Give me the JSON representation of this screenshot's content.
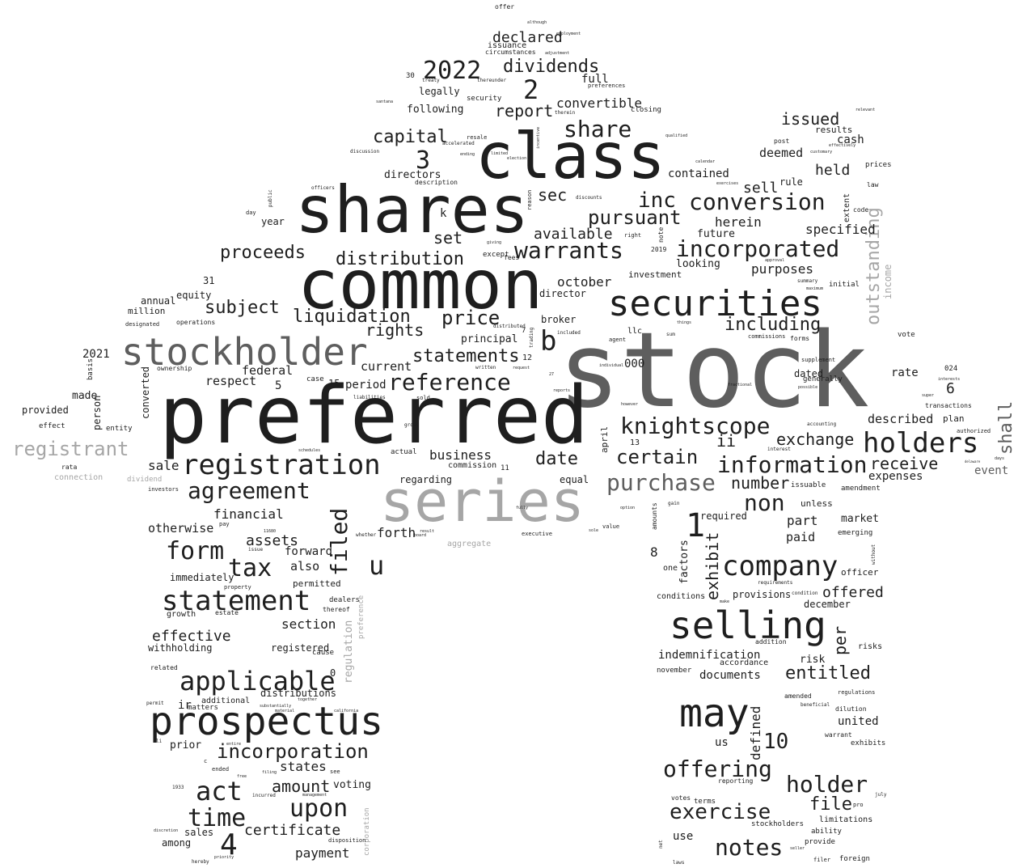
{
  "words": {
    "stock": "stock",
    "common": "common",
    "preferred": "preferred",
    "shares": "shares",
    "class": "class",
    "series": "series",
    "stockholder": "stockholder",
    "securities": "securities",
    "selling": "selling",
    "prospectus": "prospectus",
    "may": "may",
    "registration": "registration",
    "statement": "statement",
    "company": "company",
    "holders": "holders",
    "information": "information",
    "incorporated": "incorporated",
    "conversion": "conversion",
    "agreement": "agreement",
    "knightscope": "knightscope",
    "purchase": "purchase",
    "warrants": "warrants",
    "offering": "offering",
    "notes": "notes",
    "holder": "holder",
    "exercise": "exercise",
    "applicable": "applicable",
    "incorporation": "incorporation",
    "upon": "upon",
    "act": "act",
    "time": "time",
    "form": "form",
    "tax": "tax",
    "filed": "filed",
    "registrant": "registrant",
    "reference": "reference",
    "statements": "statements",
    "liquidation": "liquidation",
    "proceeds": "proceeds",
    "distribution": "distribution",
    "subject": "subject",
    "pursuant": "pursuant",
    "dividends": "dividends",
    "declared": "declared",
    "y2022": "2022",
    "n2": "2",
    "n3": "3",
    "capital": "capital",
    "share": "share",
    "convertible": "convertible",
    "report": "report",
    "issued": "issued",
    "held": "held",
    "inc": "inc",
    "sec": "sec",
    "set": "set",
    "available": "available",
    "price": "price",
    "rights": "rights",
    "including": "including",
    "b": "b",
    "n1": "1",
    "non": "non",
    "certain": "certain",
    "exchange": "exchange",
    "receive": "receive",
    "shall": "shall",
    "outstanding": "outstanding",
    "date": "date",
    "business": "business",
    "number": "number",
    "exhibit": "exhibit",
    "offered": "offered",
    "entitled": "entitled",
    "n10": "10",
    "file": "file",
    "defined": "defined",
    "u": "u",
    "assets": "assets",
    "financial": "financial",
    "effective": "effective",
    "section": "section",
    "amount": "amount",
    "certificate": "certificate",
    "payment": "payment",
    "n4": "4",
    "states": "states",
    "sell": "sell",
    "purposes": "purposes",
    "deemed": "deemed",
    "contained": "contained",
    "herein": "herein",
    "specified": "specified",
    "october": "october",
    "directors": "directors",
    "following": "following",
    "legally": "legally",
    "full": "full",
    "federal": "federal",
    "current": "current",
    "period": "period",
    "made": "made",
    "y2021": "2021",
    "sale": "sale",
    "otherwise": "otherwise",
    "forth": "forth",
    "immediately": "immediately",
    "also": "also",
    "forward": "forward",
    "withholding": "withholding",
    "registered": "registered",
    "distributions": "distributions",
    "voting": "voting",
    "prior": "prior",
    "among": "among",
    "sales": "sales",
    "indemnification": "indemnification",
    "documents": "documents",
    "risk": "risk",
    "united": "united",
    "market": "market",
    "paid": "paid",
    "part": "part",
    "rate": "rate",
    "described": "described",
    "expenses": "expenses",
    "event": "event",
    "dated": "dated",
    "n6": "6",
    "n8": "8",
    "factors": "factors",
    "provisions": "provisions",
    "december": "december",
    "per": "per",
    "us": "us",
    "use": "use",
    "regulation": "regulation",
    "cash": "cash",
    "future": "future",
    "looking": "looking",
    "investment": "investment",
    "respect": "respect",
    "equity": "equity",
    "annual": "annual",
    "principal": "principal",
    "broker": "broker",
    "director": "director",
    "million": "million",
    "provided": "provided",
    "converted": "converted",
    "person": "person",
    "year": "year",
    "regarding": "regarding",
    "equal": "equal",
    "commission": "commission",
    "aggregate": "aggregate",
    "connection": "connection",
    "dividend": "dividend",
    "corporation": "corporation",
    "preference": "preference",
    "income": "income",
    "results": "results",
    "rule": "rule",
    "post": "post",
    "law": "law",
    "prices": "prices",
    "code": "code",
    "extent": "extent",
    "initial": "initial",
    "summary": "summary",
    "vote": "vote",
    "plan": "plan",
    "transactions": "transactions",
    "authorized": "authorized",
    "issuable": "issuable",
    "amendment": "amendment",
    "unless": "unless",
    "required": "required",
    "emerging": "emerging",
    "officer": "officer",
    "risks": "risks",
    "conditions": "conditions",
    "accordance": "accordance",
    "november": "november",
    "amended": "amended",
    "dilution": "dilution",
    "warrant": "warrant",
    "exhibits": "exhibits",
    "regulations": "regulations",
    "limitations": "limitations",
    "stockholders": "stockholders",
    "ability": "ability",
    "provide": "provide",
    "foreign": "foreign",
    "votes": "votes",
    "terms": "terms",
    "reporting": "reporting",
    "addition": "addition",
    "one": "one",
    "april": "april",
    "n000": "000",
    "llc": "llc",
    "ii": "ii",
    "n12": "12",
    "n15": "15",
    "n5": "5",
    "n31": "31",
    "n30": "30",
    "n0": "0",
    "k": "k",
    "ir": "ir",
    "growth": "growth",
    "related": "related",
    "additional": "additional",
    "matters": "matters",
    "permitted": "permitted",
    "cause": "cause",
    "dealers": "dealers",
    "thereof": "thereof",
    "estate": "estate",
    "entity": "entity",
    "effect": "effect",
    "rata": "rata",
    "ownership": "ownership",
    "operations": "operations",
    "designated": "designated",
    "basis": "basis",
    "issuance": "issuance",
    "circumstances": "circumstances",
    "offer": "offer",
    "security": "security",
    "treaty": "treaty",
    "thereunder": "thereunder",
    "preferences": "preferences",
    "closing": "closing",
    "therein": "therein",
    "description": "description",
    "resale": "resale",
    "accelerated": "accelerated",
    "discussion": "discussion",
    "fees": "fees",
    "except": "except",
    "giving": "giving",
    "right": "right",
    "note": "note",
    "n2019": "2019",
    "reason": "reason",
    "public": "public",
    "day": "day",
    "officers": "officers",
    "discounts": "discounts",
    "calendar": "calendar",
    "exercises": "exercises",
    "qualified": "qualified",
    "supplement": "supplement",
    "generally": "generally",
    "possible": "possible",
    "n024": "024",
    "accounting": "accounting",
    "n13": "13",
    "amounts": "amounts",
    "interest": "interest",
    "fractional": "fractional",
    "gross": "gross",
    "actual": "actual",
    "sold": "sold",
    "liabilities": "liabilities",
    "case": "case",
    "written": "written",
    "request": "request",
    "n27": "27",
    "reports": "reports",
    "schedules": "schedules",
    "investors": "investors",
    "pay": "pay",
    "issue": "issue",
    "n11680": "11680",
    "whether": "whether",
    "executive": "executive",
    "value": "value",
    "result": "result",
    "board": "board",
    "property": "property",
    "material": "material",
    "incurred": "incurred",
    "filing": "filing",
    "see": "see",
    "ended": "ended",
    "management": "management",
    "disposition": "disposition",
    "discretion": "discretion",
    "n1933": "1933",
    "hereby": "hereby",
    "priority": "priority",
    "c": "c",
    "permit": "permit",
    "li": "li",
    "california": "california",
    "together": "together",
    "substantially": "substantially",
    "entire": "entire",
    "free": "free",
    "n11": "11",
    "n7": "7",
    "trading": "trading",
    "distributed": "distributed",
    "agent": "agent",
    "included": "included",
    "things": "things",
    "sum": "sum",
    "individual": "individual",
    "however": "however",
    "gain": "gain",
    "option": "option",
    "fully": "fully",
    "sole": "sole",
    "law2": "laws",
    "net": "net",
    "pro": "pro",
    "july": "july",
    "seller": "seller",
    "filer": "filer",
    "beneficial": "beneficial",
    "make": "make",
    "condition": "condition",
    "requirements": "requirements",
    "without": "without",
    "maximum": "maximum",
    "approval": "approval",
    "days": "days",
    "delaware": "delaware",
    "interests": "interests",
    "super": "super",
    "forms": "forms",
    "commissions": "commissions",
    "employment": "employment",
    "adjustment": "adjustment",
    "although": "although",
    "santana": "santana",
    "ending": "ending",
    "election": "election",
    "limited": "limited",
    "incentive": "incentive",
    "relevant": "relevant",
    "effectively": "effectively",
    "customary": "customary"
  }
}
